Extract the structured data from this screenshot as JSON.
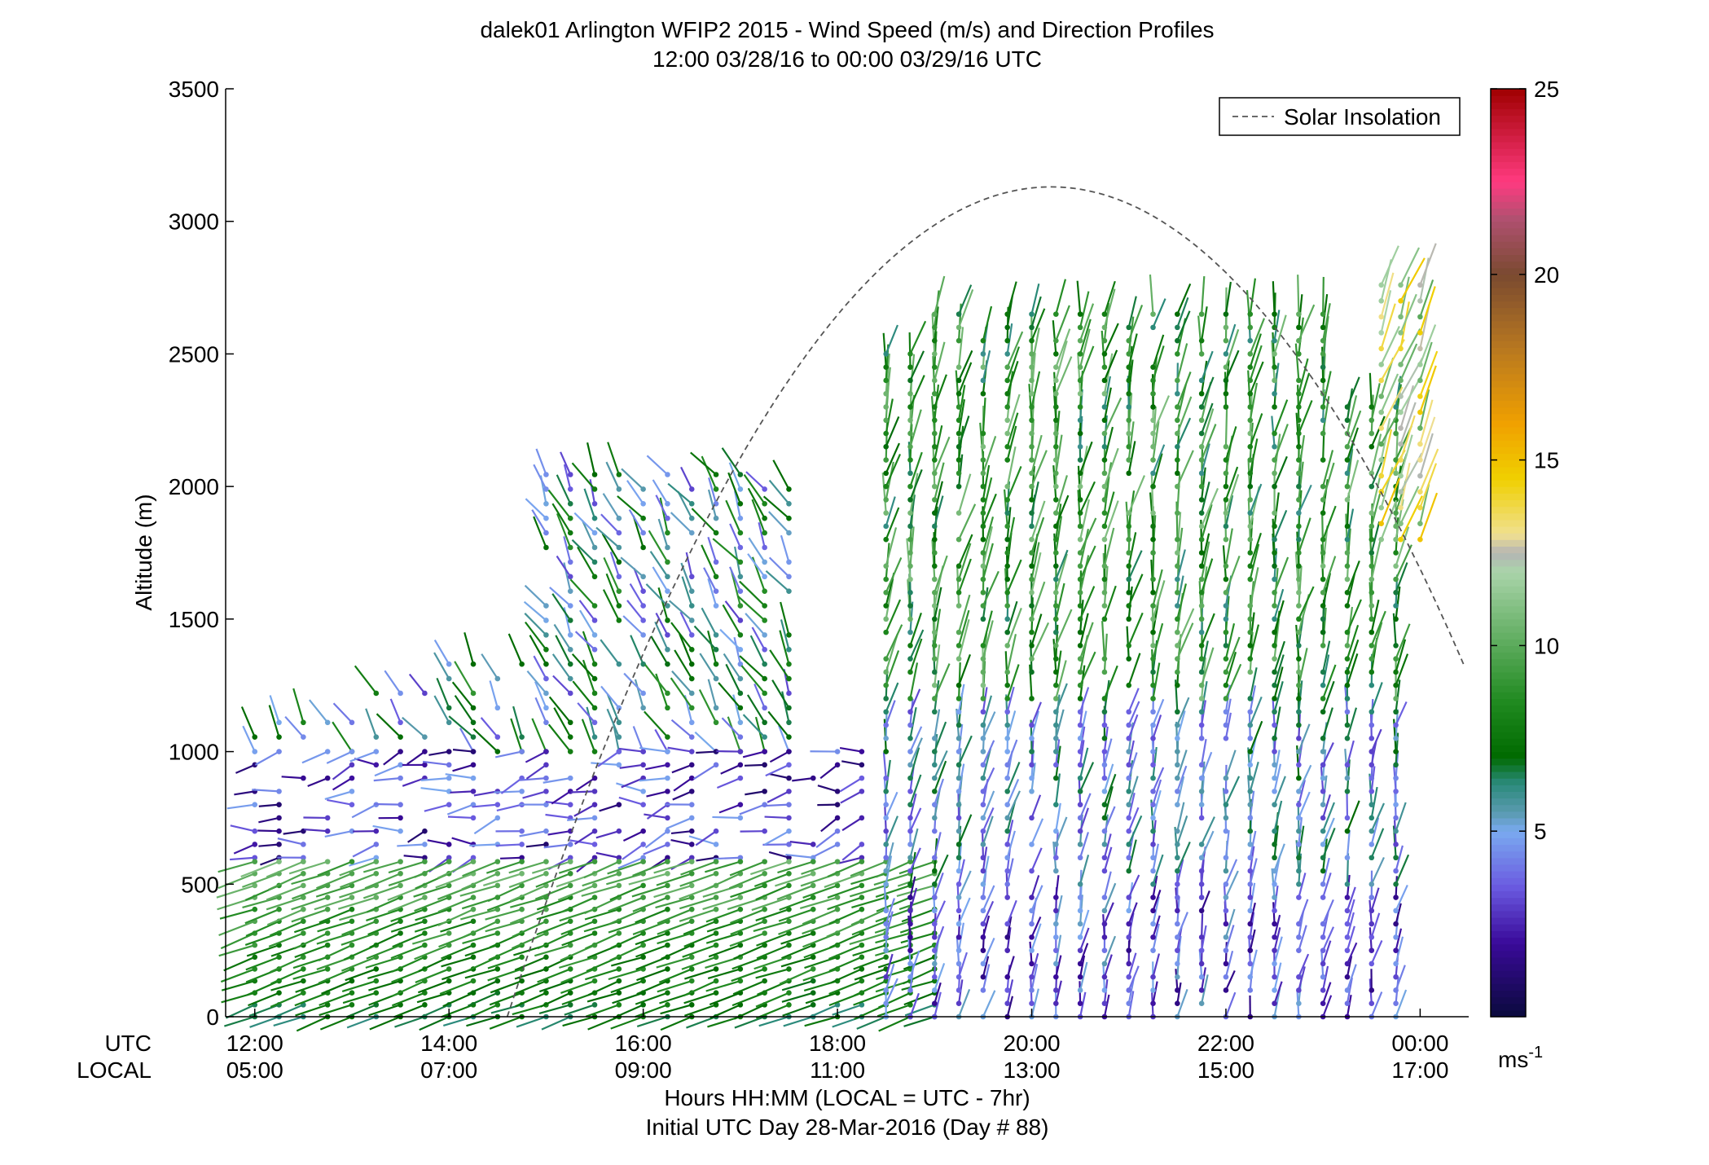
{
  "chart_data": {
    "type": "wind-barb-profile",
    "title": "dalek01 Arlington WFIP2 2015 - Wind Speed (m/s) and Direction Profiles",
    "subtitle": "12:00 03/28/16 to 00:00 03/29/16  UTC",
    "ylabel": "Altitude (m)",
    "xlabel": "Hours HH:MM  (LOCAL = UTC - 7hr)",
    "xlabel2": "Initial UTC Day 28-Mar-2016 (Day # 88)",
    "utc_row_label": "UTC",
    "local_row_label": "LOCAL",
    "xlim_hours": [
      11.7,
      24.5
    ],
    "ylim": [
      0,
      3500
    ],
    "y_ticks": [
      0,
      500,
      1000,
      1500,
      2000,
      2500,
      3000,
      3500
    ],
    "x_ticks_utc": [
      {
        "hour": 12,
        "utc": "12:00",
        "local": "05:00"
      },
      {
        "hour": 14,
        "utc": "14:00",
        "local": "07:00"
      },
      {
        "hour": 16,
        "utc": "16:00",
        "local": "09:00"
      },
      {
        "hour": 18,
        "utc": "18:00",
        "local": "11:00"
      },
      {
        "hour": 20,
        "utc": "20:00",
        "local": "13:00"
      },
      {
        "hour": 22,
        "utc": "22:00",
        "local": "15:00"
      },
      {
        "hour": 24,
        "utc": "00:00",
        "local": "17:00"
      }
    ],
    "legend": {
      "label": "Solar Insolation",
      "placement": "top-right",
      "style": "dashed gray"
    },
    "solar_insolation_curve": {
      "peak_hour": 20.2,
      "peak_altitude": 3130,
      "sunrise_hour": 14.6
    },
    "colorbar": {
      "range": [
        0,
        25
      ],
      "ticks": [
        5,
        10,
        15,
        20,
        25
      ],
      "unit_label": "ms",
      "unit_exponent": "-1",
      "colormap": [
        {
          "v": 0,
          "c": "#0a0a3c"
        },
        {
          "v": 2,
          "c": "#3a0a9a"
        },
        {
          "v": 3.5,
          "c": "#6a5ae0"
        },
        {
          "v": 5,
          "c": "#7aaaf0"
        },
        {
          "v": 5.5,
          "c": "#5a9ab0"
        },
        {
          "v": 6.3,
          "c": "#2a8a7a"
        },
        {
          "v": 7,
          "c": "#006a00"
        },
        {
          "v": 8.5,
          "c": "#208a20"
        },
        {
          "v": 10,
          "c": "#5aaa5a"
        },
        {
          "v": 12,
          "c": "#aad4aa"
        },
        {
          "v": 12.5,
          "c": "#b4b4b4"
        },
        {
          "v": 13,
          "c": "#f0e090"
        },
        {
          "v": 14.5,
          "c": "#f0d000"
        },
        {
          "v": 16,
          "c": "#f0a000"
        },
        {
          "v": 18,
          "c": "#b87820"
        },
        {
          "v": 20,
          "c": "#7a4a30"
        },
        {
          "v": 21.5,
          "c": "#b05070"
        },
        {
          "v": 22.5,
          "c": "#ff3a80"
        },
        {
          "v": 25,
          "c": "#a00000"
        }
      ]
    },
    "profiles": {
      "description_of_fields": [
        "hour_start",
        "hour_end",
        "hour_step",
        "alt_min",
        "alt_max",
        "alt_step"
      ],
      "low_level_layer": {
        "alt_range": [
          0,
          600
        ],
        "speed_range": [
          6,
          11
        ],
        "direction_deg": 250
      },
      "transition_layer": {
        "alt_range": [
          600,
          1000
        ],
        "speed_range": [
          1,
          5
        ],
        "direction_deg": 260
      },
      "upper_morning": {
        "hours": [
          12.0,
          17.5
        ],
        "alt_range": [
          1000,
          2100
        ],
        "speed_range": [
          3,
          9
        ],
        "direction_deg": 330
      },
      "afternoon_column": {
        "hours": [
          18.5,
          23.8
        ],
        "alt_range": [
          0,
          2700
        ],
        "speed_range": [
          2,
          12
        ],
        "direction_deg": 10
      },
      "late_evening_upper": {
        "hours": [
          23.6,
          24.0
        ],
        "alt_range": [
          1800,
          2800
        ],
        "speed_range": [
          12,
          15
        ],
        "direction_deg": 20
      }
    }
  }
}
